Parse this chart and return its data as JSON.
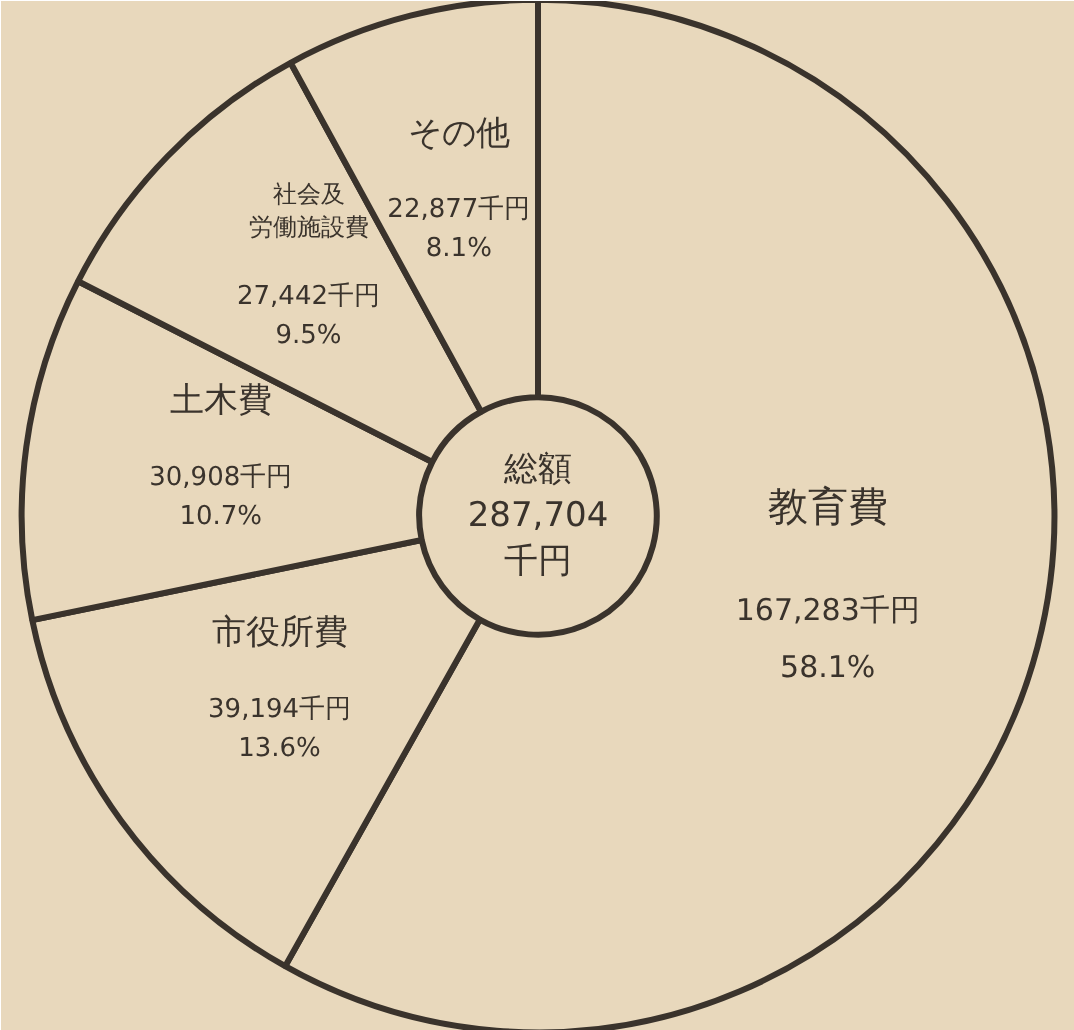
{
  "chart_data": {
    "type": "donut",
    "categories": [
      "教育費",
      "市役所費",
      "土木費",
      "社会及労働施設費",
      "その他"
    ],
    "values": [
      167283,
      39194,
      30908,
      27442,
      22877
    ],
    "value_labels": [
      "167,283千円\n58.1%",
      "39,194千円\n13.6%",
      "30,908千円\n10.7%",
      "27,442千円\n9.5%",
      "22,877千円\n8.1%"
    ],
    "colors": [
      "#e8d8bc",
      "#e8d8bc",
      "#e8d8bc",
      "#e8d8bc",
      "#e8d8bc"
    ],
    "annotations": [
      "総額\n287,704\n千円"
    ]
  }
}
